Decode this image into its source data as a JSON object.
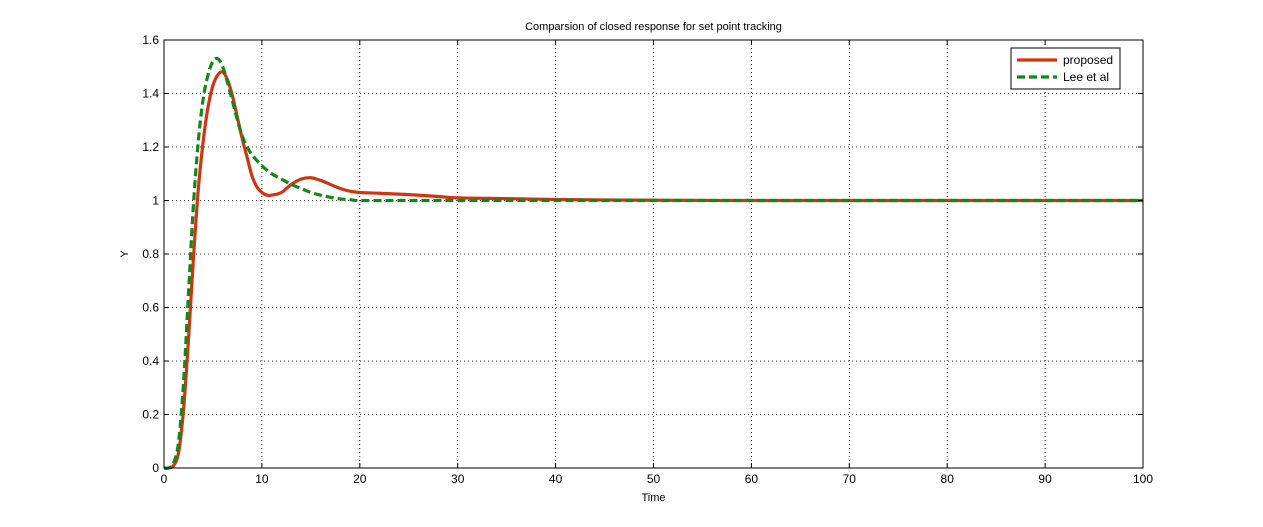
{
  "chart_data": {
    "type": "line",
    "title": "Comparsion of closed response for set point tracking",
    "xlabel": "Time",
    "ylabel": "Y",
    "xlim": [
      0,
      100
    ],
    "ylim": [
      0,
      1.6
    ],
    "xticks": [
      0,
      10,
      20,
      30,
      40,
      50,
      60,
      70,
      80,
      90,
      100
    ],
    "xtick_labels": [
      "0",
      "10",
      "20",
      "30",
      "40",
      "50",
      "60",
      "70",
      "80",
      "90",
      "100"
    ],
    "yticks": [
      0,
      0.2,
      0.4,
      0.6,
      0.8,
      1,
      1.2,
      1.4,
      1.6
    ],
    "ytick_labels": [
      "0",
      "0.2",
      "0.4",
      "0.6",
      "0.8",
      "1",
      "1.2",
      "1.4",
      "1.6"
    ],
    "grid": true,
    "legend_position": "top-right",
    "series": [
      {
        "name": "proposed",
        "color": "#d03512",
        "style": "solid",
        "points": [
          [
            0,
            0
          ],
          [
            0.5,
            0
          ],
          [
            1,
            0.01
          ],
          [
            1.5,
            0.06
          ],
          [
            2,
            0.22
          ],
          [
            2.5,
            0.48
          ],
          [
            3,
            0.78
          ],
          [
            3.5,
            1.04
          ],
          [
            4,
            1.22
          ],
          [
            4.5,
            1.35
          ],
          [
            5,
            1.43
          ],
          [
            5.5,
            1.47
          ],
          [
            6,
            1.48
          ],
          [
            6.5,
            1.45
          ],
          [
            7,
            1.39
          ],
          [
            7.5,
            1.31
          ],
          [
            8,
            1.23
          ],
          [
            8.5,
            1.16
          ],
          [
            9,
            1.09
          ],
          [
            9.5,
            1.05
          ],
          [
            10,
            1.03
          ],
          [
            10.5,
            1.02
          ],
          [
            11,
            1.02
          ],
          [
            12,
            1.03
          ],
          [
            13,
            1.06
          ],
          [
            14,
            1.08
          ],
          [
            15,
            1.085
          ],
          [
            16,
            1.075
          ],
          [
            17,
            1.06
          ],
          [
            18,
            1.045
          ],
          [
            19,
            1.035
          ],
          [
            20,
            1.03
          ],
          [
            22,
            1.027
          ],
          [
            25,
            1.022
          ],
          [
            28,
            1.015
          ],
          [
            30,
            1.01
          ],
          [
            35,
            1.007
          ],
          [
            40,
            1.004
          ],
          [
            45,
            1.002
          ],
          [
            50,
            1.001
          ],
          [
            60,
            1.0
          ],
          [
            70,
            1.0
          ],
          [
            80,
            1.0
          ],
          [
            90,
            1.0
          ],
          [
            100,
            1.0
          ]
        ]
      },
      {
        "name": "Lee et al",
        "color": "#138818",
        "style": "dashed",
        "points": [
          [
            0,
            0
          ],
          [
            0.5,
            0
          ],
          [
            1,
            0.02
          ],
          [
            1.5,
            0.1
          ],
          [
            2,
            0.32
          ],
          [
            2.5,
            0.65
          ],
          [
            3,
            0.98
          ],
          [
            3.5,
            1.22
          ],
          [
            4,
            1.38
          ],
          [
            4.5,
            1.47
          ],
          [
            5,
            1.52
          ],
          [
            5.5,
            1.53
          ],
          [
            6,
            1.5
          ],
          [
            6.5,
            1.44
          ],
          [
            7,
            1.37
          ],
          [
            7.5,
            1.3
          ],
          [
            8,
            1.24
          ],
          [
            8.5,
            1.2
          ],
          [
            9,
            1.17
          ],
          [
            10,
            1.13
          ],
          [
            11,
            1.1
          ],
          [
            12,
            1.08
          ],
          [
            13,
            1.06
          ],
          [
            14,
            1.045
          ],
          [
            15,
            1.03
          ],
          [
            16,
            1.02
          ],
          [
            17,
            1.012
          ],
          [
            18,
            1.006
          ],
          [
            19,
            1.003
          ],
          [
            20,
            1.0
          ],
          [
            25,
            1.0
          ],
          [
            30,
            1.0
          ],
          [
            40,
            1.0
          ],
          [
            50,
            1.0
          ],
          [
            60,
            1.0
          ],
          [
            70,
            1.0
          ],
          [
            80,
            1.0
          ],
          [
            90,
            1.0
          ],
          [
            100,
            1.0
          ]
        ]
      }
    ]
  }
}
